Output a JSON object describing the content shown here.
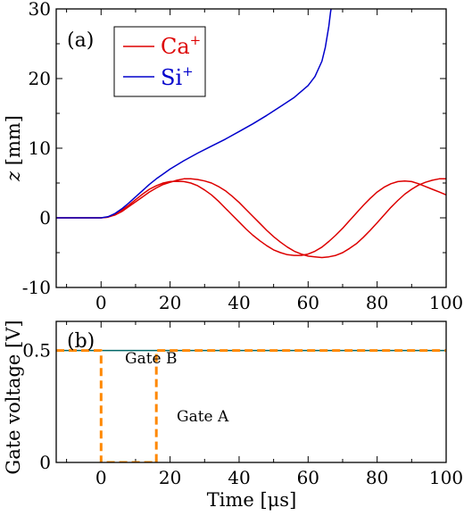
{
  "chart_data": [
    {
      "panel": "(a)",
      "type": "line",
      "xlabel": "",
      "ylabel": "z [mm]",
      "xlim": [
        -13,
        100
      ],
      "ylim": [
        -10,
        30
      ],
      "xticks": [
        "0",
        "20",
        "40",
        "60",
        "80",
        "100"
      ],
      "yticks": [
        "-10",
        "0",
        "10",
        "20",
        "30"
      ],
      "legend": {
        "position": "top-left",
        "entries": [
          {
            "label": "Ca",
            "sup": "+",
            "color": "#dd0000"
          },
          {
            "label": "Si",
            "sup": "+",
            "color": "#0000cc"
          }
        ]
      },
      "series": [
        {
          "name": "Ca+",
          "color": "#dd0000",
          "x": [
            -13,
            0,
            2,
            4,
            6,
            8,
            10,
            12,
            14,
            16,
            18,
            20,
            22,
            24,
            26,
            28,
            30,
            32,
            34,
            36,
            38,
            40,
            42,
            44,
            46,
            48,
            50,
            52,
            54,
            56,
            58,
            60,
            62,
            64,
            66,
            68,
            70,
            72,
            74,
            76,
            78,
            80,
            82,
            84,
            86,
            88,
            90,
            92,
            94,
            96,
            98,
            100
          ],
          "y": [
            0,
            0,
            0.1,
            0.5,
            1.1,
            1.8,
            2.6,
            3.4,
            4.1,
            4.6,
            5.0,
            5.2,
            5.25,
            5.2,
            5.0,
            4.6,
            4.0,
            3.3,
            2.4,
            1.4,
            0.4,
            -0.6,
            -1.6,
            -2.5,
            -3.3,
            -4.0,
            -4.6,
            -5.0,
            -5.3,
            -5.4,
            -5.4,
            -5.2,
            -4.8,
            -4.2,
            -3.4,
            -2.5,
            -1.5,
            -0.4,
            0.7,
            1.8,
            2.8,
            3.7,
            4.4,
            4.9,
            5.2,
            5.3,
            5.2,
            4.9,
            4.5,
            4.1,
            3.7,
            3.3
          ]
        },
        {
          "name": "Ca+",
          "color": "#dd0000",
          "x": [
            -13,
            0,
            2,
            4,
            6,
            8,
            10,
            12,
            14,
            16,
            18,
            20,
            22,
            24,
            26,
            28,
            30,
            32,
            34,
            36,
            38,
            40,
            42,
            44,
            46,
            48,
            50,
            52,
            54,
            56,
            58,
            60,
            62,
            64,
            66,
            68,
            70,
            72,
            74,
            76,
            78,
            80,
            82,
            84,
            86,
            88,
            90,
            92,
            94,
            96,
            98,
            100
          ],
          "y": [
            0,
            0,
            0.1,
            0.4,
            0.9,
            1.6,
            2.3,
            3.0,
            3.7,
            4.3,
            4.8,
            5.1,
            5.4,
            5.6,
            5.6,
            5.5,
            5.3,
            5.0,
            4.5,
            3.9,
            3.1,
            2.2,
            1.2,
            0.2,
            -0.8,
            -1.8,
            -2.7,
            -3.5,
            -4.2,
            -4.8,
            -5.2,
            -5.5,
            -5.6,
            -5.7,
            -5.6,
            -5.4,
            -5.0,
            -4.4,
            -3.7,
            -2.8,
            -1.8,
            -0.7,
            0.4,
            1.5,
            2.5,
            3.4,
            4.1,
            4.7,
            5.1,
            5.4,
            5.6,
            5.6
          ]
        },
        {
          "name": "Si+",
          "color": "#0000cc",
          "x": [
            -13,
            0,
            2,
            4,
            6,
            8,
            10,
            12,
            14,
            16,
            18,
            20,
            24,
            28,
            32,
            36,
            40,
            44,
            48,
            52,
            56,
            60,
            62,
            64,
            65,
            66,
            66.5,
            67
          ],
          "y": [
            0,
            0,
            0.15,
            0.6,
            1.3,
            2.1,
            3.0,
            3.9,
            4.8,
            5.6,
            6.3,
            7.0,
            8.2,
            9.3,
            10.3,
            11.3,
            12.4,
            13.5,
            14.7,
            16.0,
            17.3,
            19.0,
            20.3,
            22.5,
            24.5,
            27.5,
            29.5,
            31.0
          ]
        }
      ]
    },
    {
      "panel": "(b)",
      "type": "line",
      "xlabel": "Time [μs]",
      "ylabel": "Gate voltage [V]",
      "xlim": [
        -13,
        100
      ],
      "ylim": [
        0,
        0.63
      ],
      "xticks": [
        "0",
        "20",
        "40",
        "60",
        "80",
        "100"
      ],
      "yticks": [
        "0",
        "0.5"
      ],
      "annotations": [
        {
          "text": "Gate B",
          "color": "#006666"
        },
        {
          "text": "Gate A",
          "color": "#ff8800"
        }
      ],
      "series": [
        {
          "name": "Gate B",
          "color": "#006666",
          "x": [
            -13,
            100
          ],
          "y": [
            0.5,
            0.5
          ]
        },
        {
          "name": "Gate A",
          "color": "#ff8800",
          "dashed": true,
          "x": [
            -13,
            0,
            0,
            16,
            16,
            100
          ],
          "y": [
            0.5,
            0.5,
            0,
            0,
            0.5,
            0.5
          ]
        }
      ]
    }
  ]
}
